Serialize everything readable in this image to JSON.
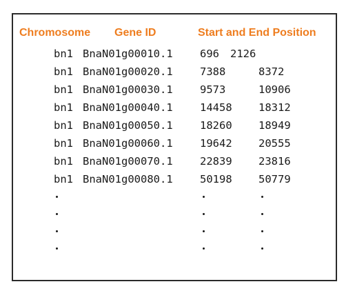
{
  "headers": {
    "chromosome": "Chromosome",
    "gene_id": "Gene ID",
    "position": "Start and End Position"
  },
  "rows": [
    {
      "chromosome": "bn1",
      "gene_id": "BnaN01g00010.1",
      "start": "696",
      "end": "2126"
    },
    {
      "chromosome": "bn1",
      "gene_id": "BnaN01g00020.1",
      "start": "7388",
      "end": "8372"
    },
    {
      "chromosome": "bn1",
      "gene_id": "BnaN01g00030.1",
      "start": "9573",
      "end": "10906"
    },
    {
      "chromosome": "bn1",
      "gene_id": "BnaN01g00040.1",
      "start": "14458",
      "end": "18312"
    },
    {
      "chromosome": "bn1",
      "gene_id": "BnaN01g00050.1",
      "start": "18260",
      "end": "18949"
    },
    {
      "chromosome": "bn1",
      "gene_id": "BnaN01g00060.1",
      "start": "19642",
      "end": "20555"
    },
    {
      "chromosome": "bn1",
      "gene_id": "BnaN01g00070.1",
      "start": "22839",
      "end": "23816"
    },
    {
      "chromosome": "bn1",
      "gene_id": "BnaN01g00080.1",
      "start": "50198",
      "end": "50779"
    }
  ],
  "ellipsis_rows": 4,
  "colors": {
    "header": "#ee7d1f",
    "text": "#1a1a1a",
    "border": "#2a2a2a"
  }
}
